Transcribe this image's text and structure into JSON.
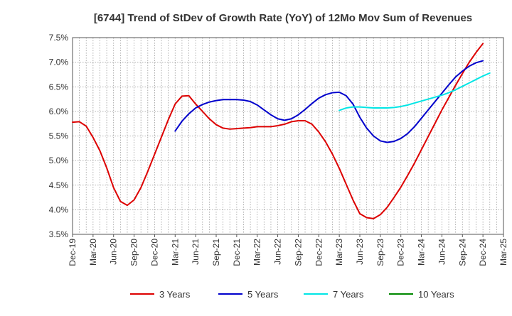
{
  "chart_data": {
    "type": "line",
    "title": "[6744]  Trend of StDev of Growth Rate (YoY) of 12Mo Mov Sum of Revenues",
    "xlabel": "",
    "ylabel": "",
    "ylim": [
      3.5,
      7.5
    ],
    "yticks": [
      3.5,
      4.0,
      4.5,
      5.0,
      5.5,
      6.0,
      6.5,
      7.0,
      7.5
    ],
    "ytick_labels": [
      "3.5%",
      "4.0%",
      "4.5%",
      "5.0%",
      "5.5%",
      "6.0%",
      "6.5%",
      "7.0%",
      "7.5%"
    ],
    "x_categories": [
      "Dec-19",
      "Mar-20",
      "Jun-20",
      "Sep-20",
      "Dec-20",
      "Mar-21",
      "Jun-21",
      "Sep-21",
      "Dec-21",
      "Mar-22",
      "Jun-22",
      "Sep-22",
      "Dec-22",
      "Mar-23",
      "Jun-23",
      "Sep-23",
      "Dec-23",
      "Mar-24",
      "Jun-24",
      "Sep-24",
      "Dec-24",
      "Mar-25"
    ],
    "grid": true,
    "legend_position": "bottom",
    "series": [
      {
        "name": "3 Years",
        "color": "#dd0000",
        "start_index": 0,
        "values": [
          5.78,
          5.79,
          5.7,
          5.47,
          5.2,
          4.85,
          4.45,
          4.17,
          4.09,
          4.2,
          4.45,
          4.78,
          5.13,
          5.48,
          5.83,
          6.15,
          6.31,
          6.32,
          6.15,
          6.0,
          5.85,
          5.73,
          5.66,
          5.64,
          5.65,
          5.66,
          5.67,
          5.69,
          5.69,
          5.69,
          5.71,
          5.74,
          5.79,
          5.81,
          5.81,
          5.74,
          5.58,
          5.38,
          5.13,
          4.84,
          4.52,
          4.2,
          3.92,
          3.84,
          3.82,
          3.9,
          4.05,
          4.25,
          4.46,
          4.7,
          4.95,
          5.22,
          5.49,
          5.76,
          6.03,
          6.28,
          6.53,
          6.77,
          7.0,
          7.2,
          7.38
        ]
      },
      {
        "name": "5 Years",
        "color": "#0000cc",
        "start_index": 15,
        "values": [
          5.6,
          5.8,
          5.95,
          6.07,
          6.14,
          6.19,
          6.22,
          6.24,
          6.24,
          6.24,
          6.23,
          6.2,
          6.13,
          6.03,
          5.93,
          5.85,
          5.82,
          5.85,
          5.93,
          6.04,
          6.16,
          6.27,
          6.34,
          6.38,
          6.39,
          6.32,
          6.15,
          5.88,
          5.66,
          5.5,
          5.4,
          5.37,
          5.39,
          5.45,
          5.55,
          5.69,
          5.86,
          6.03,
          6.2,
          6.37,
          6.54,
          6.7,
          6.82,
          6.92,
          6.99,
          7.03
        ]
      },
      {
        "name": "7 Years",
        "color": "#00e5e5",
        "start_index": 39,
        "values": [
          6.02,
          6.07,
          6.09,
          6.09,
          6.08,
          6.07,
          6.07,
          6.07,
          6.08,
          6.1,
          6.13,
          6.17,
          6.21,
          6.25,
          6.29,
          6.33,
          6.38,
          6.44,
          6.51,
          6.58,
          6.65,
          6.72,
          6.78
        ]
      },
      {
        "name": "10 Years",
        "color": "#008800",
        "start_index": 0,
        "values": []
      }
    ]
  }
}
